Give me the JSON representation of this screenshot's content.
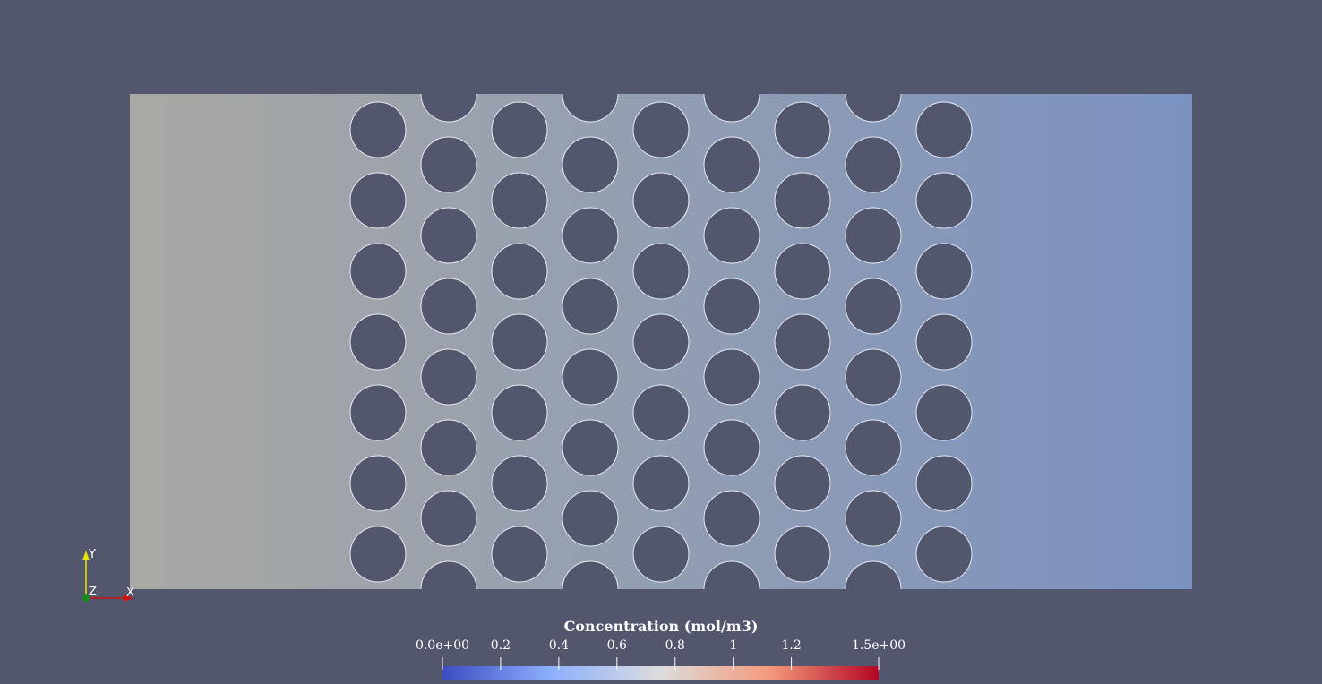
{
  "colorbar": {
    "title": "Concentration (mol/m3)",
    "ticks": [
      "0.0e+00",
      "0.2",
      "0.4",
      "0.6",
      "0.8",
      "1",
      "1.2",
      "1.5e+00"
    ],
    "range": [
      0,
      1.5
    ],
    "colormap": [
      "#3b4cc0",
      "#8db0fe",
      "#dddddd",
      "#f49a7b",
      "#b40426"
    ]
  },
  "field": {
    "left_color": "#a9a9a4",
    "right_color": "#7b92c0"
  },
  "obstacle_color": "#52576e",
  "background": "#52576e",
  "axes": {
    "x": "X",
    "y": "Y",
    "z": "Z"
  }
}
